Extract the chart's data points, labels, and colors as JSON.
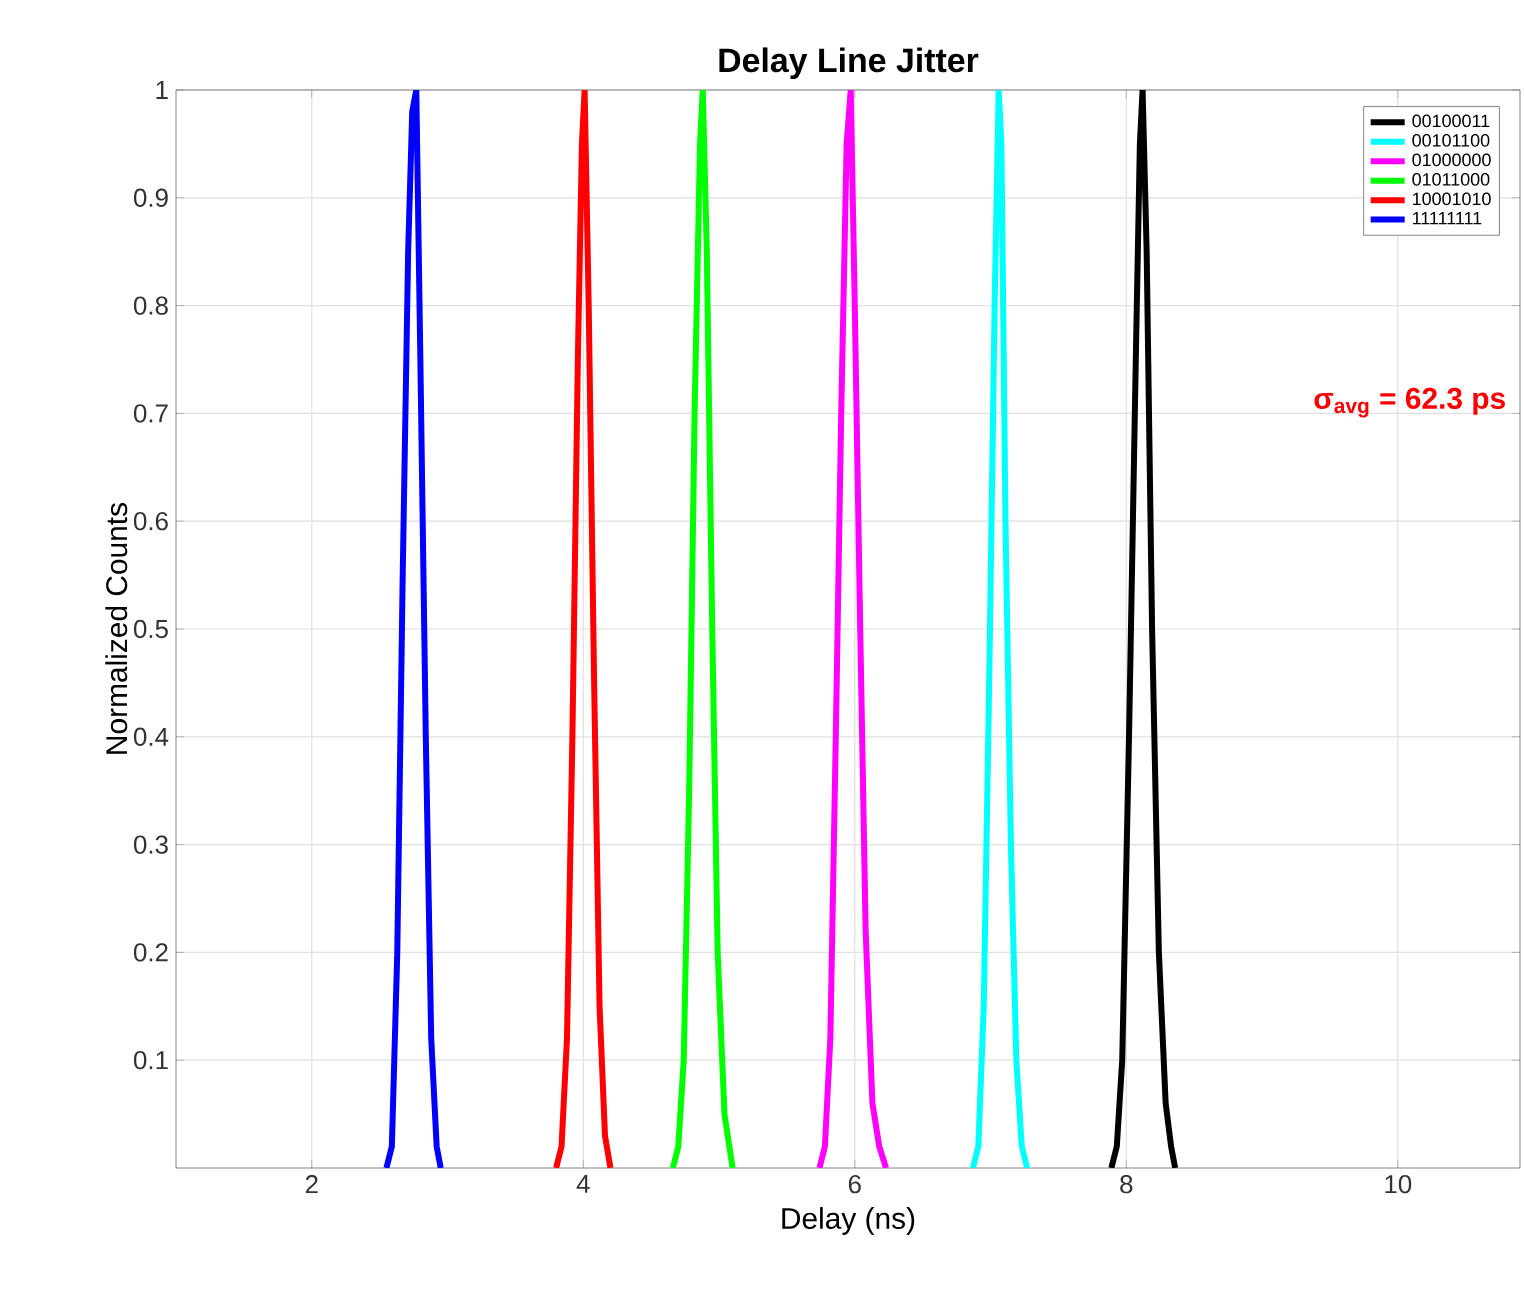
{
  "chart_data": {
    "type": "line",
    "title": "Delay Line Jitter",
    "xlabel": "Delay (ns)",
    "ylabel": "Normalized Counts",
    "xlim": [
      1,
      10.9
    ],
    "xticks": [
      2,
      4,
      6,
      8,
      10
    ],
    "ylim": [
      0,
      1
    ],
    "yticks": [
      0.1,
      0.2,
      0.3,
      0.4,
      0.5,
      0.6,
      0.7,
      0.8,
      0.9,
      1
    ],
    "grid": true,
    "legend": "top right",
    "annotations": [
      "σ$_{avg}$ = 62.3 ps"
    ],
    "series": [
      {
        "name": "00100011",
        "color": "#000000",
        "x": [
          7.89,
          7.93,
          7.97,
          8.02,
          8.07,
          8.1,
          8.12,
          8.15,
          8.19,
          8.24,
          8.29,
          8.33,
          8.36
        ],
        "values": [
          0,
          0.02,
          0.1,
          0.4,
          0.75,
          0.95,
          1,
          0.85,
          0.5,
          0.2,
          0.06,
          0.02,
          0
        ]
      },
      {
        "name": "00101100",
        "color": "#00ffff",
        "x": [
          6.87,
          6.91,
          6.95,
          6.99,
          7.03,
          7.06,
          7.08,
          7.11,
          7.15,
          7.19,
          7.23,
          7.27
        ],
        "values": [
          0,
          0.02,
          0.15,
          0.45,
          0.8,
          1,
          0.95,
          0.6,
          0.3,
          0.1,
          0.02,
          0
        ]
      },
      {
        "name": "01000000",
        "color": "#ff00ff",
        "x": [
          5.74,
          5.78,
          5.82,
          5.86,
          5.9,
          5.94,
          5.97,
          6.0,
          6.04,
          6.08,
          6.13,
          6.18,
          6.23
        ],
        "values": [
          0,
          0.02,
          0.12,
          0.4,
          0.7,
          0.95,
          1,
          0.8,
          0.5,
          0.22,
          0.06,
          0.02,
          0
        ]
      },
      {
        "name": "01011000",
        "color": "#00ff00",
        "x": [
          4.66,
          4.7,
          4.74,
          4.78,
          4.82,
          4.86,
          4.88,
          4.91,
          4.95,
          4.99,
          5.04,
          5.1
        ],
        "values": [
          0,
          0.02,
          0.1,
          0.35,
          0.7,
          0.95,
          1,
          0.85,
          0.5,
          0.2,
          0.05,
          0
        ]
      },
      {
        "name": "10001010",
        "color": "#ff0000",
        "x": [
          3.8,
          3.84,
          3.88,
          3.92,
          3.96,
          3.99,
          4.01,
          4.04,
          4.08,
          4.12,
          4.16,
          4.2
        ],
        "values": [
          0,
          0.02,
          0.12,
          0.4,
          0.75,
          0.95,
          1,
          0.8,
          0.45,
          0.15,
          0.03,
          0
        ]
      },
      {
        "name": "11111111",
        "color": "#0000ff",
        "x": [
          2.55,
          2.59,
          2.63,
          2.67,
          2.71,
          2.74,
          2.77,
          2.8,
          2.84,
          2.88,
          2.92,
          2.95
        ],
        "values": [
          0,
          0.02,
          0.2,
          0.55,
          0.85,
          0.98,
          1,
          0.75,
          0.4,
          0.12,
          0.02,
          0
        ]
      }
    ]
  }
}
